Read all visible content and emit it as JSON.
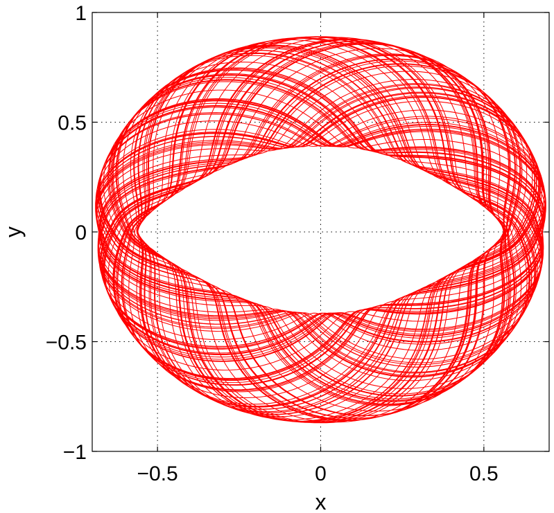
{
  "chart_data": {
    "type": "line",
    "title": "",
    "xlabel": "x",
    "ylabel": "y",
    "xlim": [
      -0.7,
      0.7
    ],
    "ylim": [
      -1,
      1
    ],
    "xticks": [
      {
        "value": -0.5,
        "label": "−0.5"
      },
      {
        "value": 0,
        "label": "0"
      },
      {
        "value": 0.5,
        "label": "0.5"
      }
    ],
    "yticks": [
      {
        "value": -1,
        "label": "−1"
      },
      {
        "value": -0.5,
        "label": "−0.5"
      },
      {
        "value": 0,
        "label": "0"
      },
      {
        "value": 0.5,
        "label": "0.5"
      },
      {
        "value": 1,
        "label": "1"
      }
    ],
    "grid": true,
    "grid_style": "dotted",
    "series": [
      {
        "color": "#ff0000",
        "description_points": {
          "outer_boundary": [
            [
              -0.68,
              0.0
            ],
            [
              -0.66,
              0.3
            ],
            [
              -0.58,
              0.55
            ],
            [
              -0.42,
              0.76
            ],
            [
              -0.2,
              0.86
            ],
            [
              0.05,
              0.88
            ],
            [
              0.3,
              0.83
            ],
            [
              0.5,
              0.68
            ],
            [
              0.63,
              0.45
            ],
            [
              0.68,
              0.15
            ],
            [
              0.67,
              -0.1
            ],
            [
              0.63,
              -0.4
            ],
            [
              0.5,
              -0.65
            ],
            [
              0.3,
              -0.8
            ],
            [
              0.0,
              -0.86
            ],
            [
              -0.3,
              -0.82
            ],
            [
              -0.5,
              -0.7
            ],
            [
              -0.63,
              -0.45
            ],
            [
              -0.68,
              -0.15
            ]
          ],
          "inner_boundary": [
            [
              -0.56,
              0.0
            ],
            [
              -0.4,
              0.2
            ],
            [
              -0.2,
              0.34
            ],
            [
              0.0,
              0.4
            ],
            [
              0.2,
              0.39
            ],
            [
              0.4,
              0.24
            ],
            [
              0.56,
              0.0
            ],
            [
              0.4,
              -0.2
            ],
            [
              0.2,
              -0.33
            ],
            [
              0.0,
              -0.38
            ],
            [
              -0.2,
              -0.35
            ],
            [
              -0.4,
              -0.22
            ]
          ]
        }
      }
    ]
  }
}
